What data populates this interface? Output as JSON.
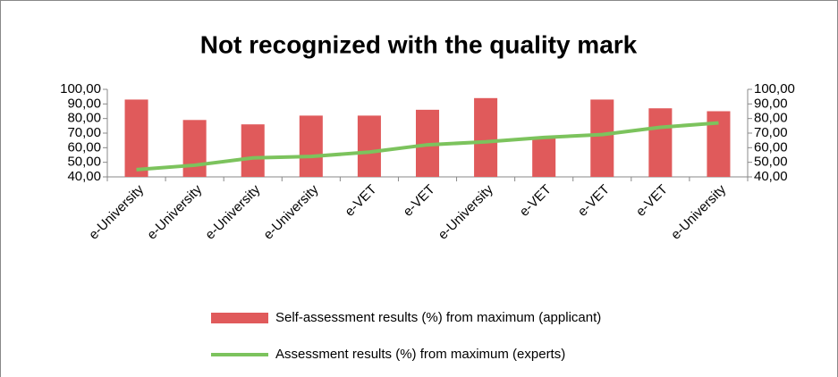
{
  "chart_data": {
    "type": "bar-line",
    "title": "Not recognized with the quality mark",
    "categories": [
      "e-University",
      "e-University",
      "e-University",
      "e-University",
      "e-VET",
      "e-VET",
      "e-University",
      "e-VET",
      "e-VET",
      "e-VET",
      "e-University"
    ],
    "series": [
      {
        "name": "Self-assessment results (%) from maximum (applicant)",
        "type": "bar",
        "color": "#e05a5b",
        "values": [
          93,
          79,
          76,
          82,
          82,
          86,
          94,
          67,
          93,
          87,
          85
        ]
      },
      {
        "name": "Assessment results (%) from maximum (experts)",
        "type": "line",
        "axis": "y2",
        "color": "#7cc35d",
        "values": [
          45,
          48,
          53,
          54,
          57,
          62,
          64,
          67,
          69,
          74,
          77
        ]
      }
    ],
    "ylim": [
      40,
      100
    ],
    "yticks": [
      {
        "value": 40,
        "label": "40,00"
      },
      {
        "value": 50,
        "label": "50,00"
      },
      {
        "value": 60,
        "label": "60,00"
      },
      {
        "value": 70,
        "label": "70,00"
      },
      {
        "value": 80,
        "label": "80,00"
      },
      {
        "value": 90,
        "label": "90,00"
      },
      {
        "value": 100,
        "label": "100,00"
      }
    ],
    "y2lim": [
      40,
      100
    ],
    "y2ticks": [
      {
        "value": 40,
        "label": "40,00"
      },
      {
        "value": 50,
        "label": "50,00"
      },
      {
        "value": 60,
        "label": "60,00"
      },
      {
        "value": 70,
        "label": "70,00"
      },
      {
        "value": 80,
        "label": "80,00"
      },
      {
        "value": 90,
        "label": "90,00"
      },
      {
        "value": 100,
        "label": "100,00"
      }
    ],
    "legend": "bottom"
  }
}
